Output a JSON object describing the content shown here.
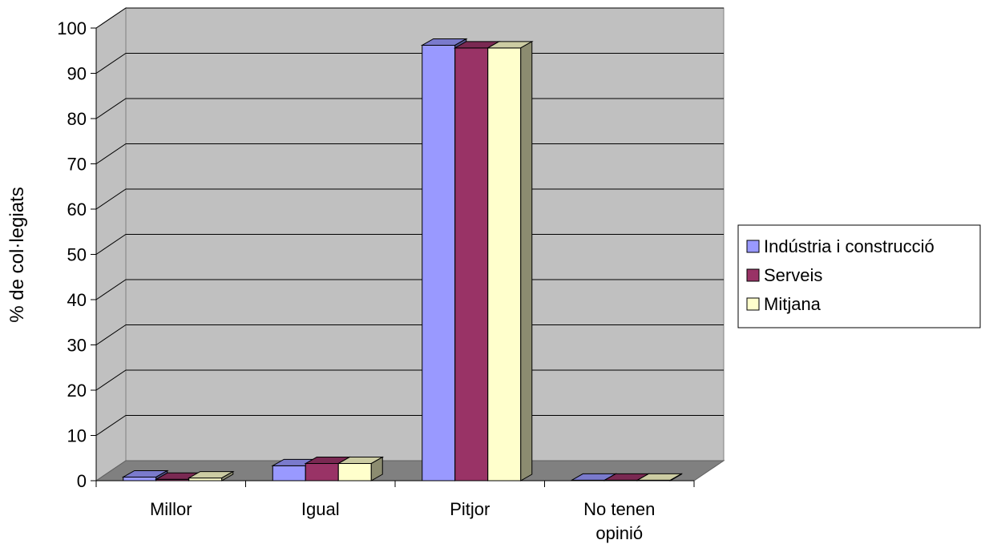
{
  "chart_data": {
    "type": "bar",
    "title": "",
    "xlabel": "",
    "ylabel": "% de col·legiats",
    "ylim": [
      0,
      100
    ],
    "yticks": [
      0,
      10,
      20,
      30,
      40,
      50,
      60,
      70,
      80,
      90,
      100
    ],
    "categories": [
      "Millor",
      "Igual",
      "Pitjor",
      "No tenen opinió"
    ],
    "series": [
      {
        "name": "Indústria i construcció",
        "color": "#9999FF",
        "values": [
          0.8,
          3.3,
          96.2,
          0.1
        ]
      },
      {
        "name": "Serveis",
        "color": "#993366",
        "values": [
          0.3,
          3.8,
          95.6,
          0.1
        ]
      },
      {
        "name": "Mitjana",
        "color": "#FFFFCC",
        "values": [
          0.6,
          3.8,
          95.6,
          0.1
        ]
      }
    ],
    "grid": true,
    "legend_position": "right"
  }
}
